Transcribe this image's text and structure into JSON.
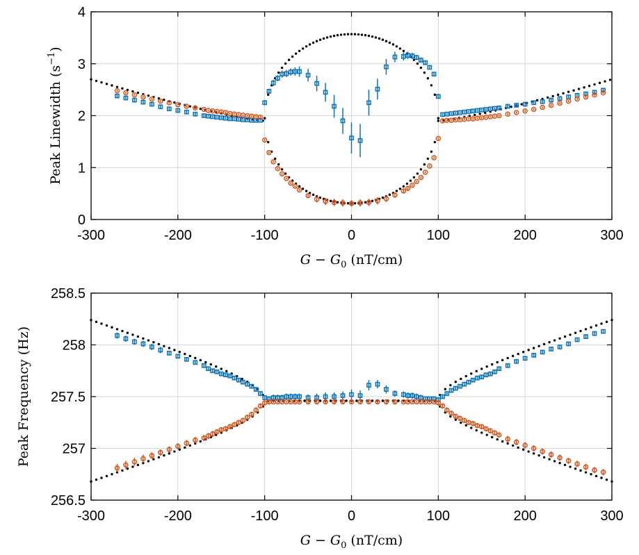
{
  "colors": {
    "blue": "#0a72bd",
    "orange": "#d95319",
    "theory": "#000000",
    "grid": "#d6d6d6"
  },
  "chart_data": [
    {
      "type": "scatter",
      "title": "",
      "xlabel": "G − G0 (nT/cm)",
      "xlabel_parts": {
        "main": "G − G",
        "sub": "0",
        "unit": " (nT/cm)"
      },
      "ylabel": "Peak Linewidth (s−1)",
      "ylabel_parts": {
        "main": "Peak Linewidth (s",
        "sup": "−1",
        "close": ")"
      },
      "xlim": [
        -300,
        300
      ],
      "ylim": [
        0,
        4
      ],
      "xticks": [
        "-300",
        "-200",
        "-100",
        "0",
        "100",
        "200",
        "300"
      ],
      "xtick_values": [
        -300,
        -200,
        -100,
        0,
        100,
        200,
        300
      ],
      "yticks": [
        "0",
        "1",
        "2",
        "3",
        "4"
      ],
      "ytick_values": [
        0,
        1,
        2,
        3,
        4
      ],
      "grid": true,
      "series": [
        {
          "marker": "square",
          "color": "#0a72bd",
          "x": [
            -270,
            -260,
            -250,
            -240,
            -230,
            -220,
            -210,
            -200,
            -190,
            -180,
            -170,
            -165,
            -160,
            -155,
            -150,
            -145,
            -140,
            -135,
            -130,
            -125,
            -120,
            -115,
            -110,
            -105,
            -100,
            -95,
            -90,
            -85,
            -80,
            -75,
            -70,
            -65,
            -60,
            -50,
            -40,
            -30,
            -20,
            -10,
            0,
            10,
            20,
            30,
            40,
            50,
            60,
            65,
            70,
            75,
            80,
            85,
            90,
            95,
            100,
            105,
            110,
            115,
            120,
            125,
            130,
            135,
            140,
            145,
            150,
            155,
            160,
            165,
            170,
            180,
            190,
            200,
            210,
            220,
            230,
            240,
            250,
            260,
            270,
            280,
            290
          ],
          "y": [
            2.38,
            2.34,
            2.3,
            2.26,
            2.22,
            2.17,
            2.13,
            2.1,
            2.07,
            2.03,
            2.0,
            1.99,
            1.98,
            1.97,
            1.96,
            1.95,
            1.94,
            1.94,
            1.93,
            1.92,
            1.92,
            1.91,
            1.91,
            1.91,
            2.25,
            2.47,
            2.63,
            2.72,
            2.8,
            2.81,
            2.84,
            2.85,
            2.85,
            2.78,
            2.62,
            2.45,
            2.18,
            1.9,
            1.57,
            1.52,
            2.25,
            2.51,
            2.94,
            3.13,
            3.14,
            3.16,
            3.15,
            3.12,
            3.07,
            3.02,
            2.93,
            2.8,
            2.37,
            2.02,
            2.03,
            2.04,
            2.05,
            2.06,
            2.07,
            2.08,
            2.09,
            2.1,
            2.11,
            2.12,
            2.13,
            2.14,
            2.15,
            2.18,
            2.2,
            2.22,
            2.25,
            2.27,
            2.3,
            2.33,
            2.36,
            2.39,
            2.42,
            2.45,
            2.49
          ],
          "err": [
            0.04,
            0.04,
            0.04,
            0.04,
            0.04,
            0.04,
            0.03,
            0.03,
            0.03,
            0.03,
            0.03,
            0.02,
            0.02,
            0.02,
            0.02,
            0.02,
            0.02,
            0.02,
            0.02,
            0.02,
            0.02,
            0.02,
            0.02,
            0.02,
            0.05,
            0.05,
            0.06,
            0.06,
            0.07,
            0.07,
            0.07,
            0.08,
            0.1,
            0.12,
            0.15,
            0.18,
            0.22,
            0.25,
            0.3,
            0.32,
            0.25,
            0.2,
            0.15,
            0.1,
            0.08,
            0.07,
            0.06,
            0.05,
            0.05,
            0.04,
            0.04,
            0.04,
            0.03,
            0.02,
            0.02,
            0.02,
            0.02,
            0.02,
            0.02,
            0.02,
            0.02,
            0.02,
            0.02,
            0.02,
            0.02,
            0.02,
            0.03,
            0.03,
            0.03,
            0.03,
            0.03,
            0.03,
            0.03,
            0.04,
            0.04,
            0.04,
            0.04,
            0.04,
            0.04
          ]
        },
        {
          "marker": "circle",
          "color": "#d95319",
          "x": [
            -270,
            -260,
            -250,
            -240,
            -230,
            -220,
            -210,
            -200,
            -190,
            -180,
            -170,
            -165,
            -160,
            -155,
            -150,
            -145,
            -140,
            -135,
            -130,
            -125,
            -120,
            -115,
            -110,
            -105,
            -100,
            -95,
            -90,
            -85,
            -80,
            -75,
            -70,
            -65,
            -60,
            -50,
            -40,
            -30,
            -20,
            -10,
            0,
            10,
            20,
            30,
            40,
            50,
            60,
            65,
            70,
            75,
            80,
            85,
            90,
            95,
            100,
            105,
            110,
            115,
            120,
            125,
            130,
            135,
            140,
            145,
            150,
            155,
            160,
            165,
            170,
            180,
            190,
            200,
            210,
            220,
            230,
            240,
            250,
            260,
            270,
            280,
            290
          ],
          "y": [
            2.48,
            2.44,
            2.4,
            2.36,
            2.32,
            2.28,
            2.25,
            2.21,
            2.18,
            2.15,
            2.12,
            2.1,
            2.09,
            2.08,
            2.07,
            2.06,
            2.04,
            2.03,
            2.02,
            2.01,
            2.0,
            1.99,
            1.98,
            1.97,
            1.53,
            1.29,
            1.11,
            0.98,
            0.88,
            0.79,
            0.7,
            0.64,
            0.57,
            0.46,
            0.39,
            0.35,
            0.33,
            0.32,
            0.31,
            0.32,
            0.33,
            0.36,
            0.4,
            0.47,
            0.55,
            0.6,
            0.66,
            0.73,
            0.81,
            0.91,
            1.03,
            1.19,
            1.56,
            1.9,
            1.91,
            1.91,
            1.92,
            1.92,
            1.93,
            1.94,
            1.94,
            1.95,
            1.96,
            1.97,
            1.98,
            1.99,
            2.0,
            2.03,
            2.06,
            2.09,
            2.12,
            2.16,
            2.2,
            2.24,
            2.28,
            2.32,
            2.36,
            2.4,
            2.44
          ],
          "err": [
            0.02,
            0.02,
            0.02,
            0.02,
            0.02,
            0.02,
            0.02,
            0.02,
            0.02,
            0.02,
            0.02,
            0.02,
            0.02,
            0.02,
            0.02,
            0.02,
            0.02,
            0.02,
            0.02,
            0.02,
            0.02,
            0.02,
            0.02,
            0.02,
            0.02,
            0.02,
            0.02,
            0.02,
            0.02,
            0.02,
            0.02,
            0.02,
            0.02,
            0.04,
            0.06,
            0.07,
            0.07,
            0.07,
            0.06,
            0.07,
            0.07,
            0.07,
            0.06,
            0.05,
            0.04,
            0.03,
            0.02,
            0.02,
            0.02,
            0.02,
            0.02,
            0.02,
            0.02,
            0.02,
            0.02,
            0.02,
            0.02,
            0.02,
            0.02,
            0.02,
            0.02,
            0.02,
            0.02,
            0.02,
            0.02,
            0.02,
            0.02,
            0.02,
            0.02,
            0.02,
            0.02,
            0.02,
            0.02,
            0.02,
            0.02,
            0.02,
            0.02,
            0.02,
            0.02
          ]
        }
      ]
    },
    {
      "type": "scatter",
      "title": "",
      "xlabel": "G − G0 (nT/cm)",
      "xlabel_parts": {
        "main": "G − G",
        "sub": "0",
        "unit": " (nT/cm)"
      },
      "ylabel": "Peak Frequency (Hz)",
      "xlim": [
        -300,
        300
      ],
      "ylim": [
        256.5,
        258.5
      ],
      "xticks": [
        "-300",
        "-200",
        "-100",
        "0",
        "100",
        "200",
        "300"
      ],
      "xtick_values": [
        -300,
        -200,
        -100,
        0,
        100,
        200,
        300
      ],
      "yticks": [
        "256.5",
        "257",
        "257.5",
        "258",
        "258.5"
      ],
      "ytick_values": [
        256.5,
        257,
        257.5,
        258,
        258.5
      ],
      "grid": true,
      "series": [
        {
          "marker": "square",
          "color": "#0a72bd",
          "x": [
            -270,
            -260,
            -250,
            -240,
            -230,
            -220,
            -210,
            -200,
            -190,
            -180,
            -170,
            -165,
            -160,
            -155,
            -150,
            -145,
            -140,
            -135,
            -130,
            -125,
            -120,
            -115,
            -110,
            -105,
            -100,
            -95,
            -90,
            -85,
            -80,
            -75,
            -70,
            -65,
            -60,
            -50,
            -40,
            -30,
            -20,
            -10,
            0,
            10,
            20,
            30,
            40,
            50,
            60,
            65,
            70,
            75,
            80,
            85,
            90,
            95,
            100,
            105,
            110,
            115,
            120,
            125,
            130,
            135,
            140,
            145,
            150,
            155,
            160,
            165,
            170,
            180,
            190,
            200,
            210,
            220,
            230,
            240,
            250,
            260,
            270,
            280,
            290
          ],
          "y": [
            258.09,
            258.06,
            258.03,
            258.01,
            257.98,
            257.95,
            257.92,
            257.89,
            257.86,
            257.83,
            257.8,
            257.77,
            257.75,
            257.74,
            257.72,
            257.71,
            257.7,
            257.68,
            257.66,
            257.64,
            257.62,
            257.6,
            257.57,
            257.53,
            257.49,
            257.48,
            257.49,
            257.49,
            257.49,
            257.5,
            257.5,
            257.5,
            257.5,
            257.49,
            257.49,
            257.5,
            257.5,
            257.51,
            257.52,
            257.51,
            257.61,
            257.62,
            257.57,
            257.53,
            257.52,
            257.51,
            257.51,
            257.5,
            257.49,
            257.48,
            257.48,
            257.48,
            257.47,
            257.5,
            257.53,
            257.56,
            257.58,
            257.6,
            257.62,
            257.64,
            257.66,
            257.68,
            257.69,
            257.71,
            257.72,
            257.74,
            257.77,
            257.8,
            257.84,
            257.87,
            257.9,
            257.93,
            257.96,
            257.98,
            258.01,
            258.05,
            258.08,
            258.11,
            258.13
          ],
          "err": [
            0.03,
            0.03,
            0.03,
            0.03,
            0.03,
            0.03,
            0.02,
            0.02,
            0.02,
            0.02,
            0.02,
            0.02,
            0.02,
            0.02,
            0.02,
            0.02,
            0.02,
            0.02,
            0.02,
            0.02,
            0.02,
            0.02,
            0.02,
            0.02,
            0.02,
            0.02,
            0.03,
            0.03,
            0.03,
            0.03,
            0.03,
            0.03,
            0.03,
            0.03,
            0.04,
            0.04,
            0.04,
            0.04,
            0.05,
            0.05,
            0.05,
            0.04,
            0.04,
            0.03,
            0.03,
            0.03,
            0.03,
            0.03,
            0.03,
            0.02,
            0.02,
            0.02,
            0.02,
            0.02,
            0.02,
            0.02,
            0.02,
            0.02,
            0.02,
            0.02,
            0.02,
            0.02,
            0.02,
            0.02,
            0.02,
            0.02,
            0.02,
            0.02,
            0.02,
            0.02,
            0.02,
            0.02,
            0.02,
            0.02,
            0.02,
            0.02,
            0.02,
            0.02,
            0.02
          ]
        },
        {
          "marker": "circle",
          "color": "#d95319",
          "x": [
            -270,
            -260,
            -250,
            -240,
            -230,
            -220,
            -210,
            -200,
            -190,
            -180,
            -170,
            -165,
            -160,
            -155,
            -150,
            -145,
            -140,
            -135,
            -130,
            -125,
            -120,
            -115,
            -110,
            -105,
            -100,
            -95,
            -90,
            -85,
            -80,
            -75,
            -70,
            -65,
            -60,
            -50,
            -40,
            -30,
            -20,
            -10,
            0,
            10,
            20,
            30,
            40,
            50,
            60,
            65,
            70,
            75,
            80,
            85,
            90,
            95,
            100,
            105,
            110,
            115,
            120,
            125,
            130,
            135,
            140,
            145,
            150,
            155,
            160,
            165,
            170,
            180,
            190,
            200,
            210,
            220,
            230,
            240,
            250,
            260,
            270,
            280,
            290
          ],
          "y": [
            256.81,
            256.84,
            256.87,
            256.9,
            256.93,
            256.96,
            256.99,
            257.02,
            257.05,
            257.08,
            257.1,
            257.12,
            257.14,
            257.16,
            257.18,
            257.19,
            257.21,
            257.23,
            257.25,
            257.27,
            257.3,
            257.33,
            257.37,
            257.41,
            257.44,
            257.45,
            257.45,
            257.45,
            257.45,
            257.45,
            257.45,
            257.45,
            257.45,
            257.45,
            257.45,
            257.45,
            257.45,
            257.45,
            257.45,
            257.45,
            257.45,
            257.45,
            257.45,
            257.45,
            257.45,
            257.45,
            257.45,
            257.45,
            257.45,
            257.45,
            257.45,
            257.45,
            257.44,
            257.41,
            257.37,
            257.34,
            257.31,
            257.29,
            257.27,
            257.25,
            257.24,
            257.22,
            257.21,
            257.19,
            257.17,
            257.15,
            257.13,
            257.09,
            257.06,
            257.03,
            257.0,
            256.97,
            256.94,
            256.91,
            256.88,
            256.85,
            256.82,
            256.79,
            256.77
          ],
          "err": [
            0.04,
            0.04,
            0.04,
            0.04,
            0.03,
            0.03,
            0.03,
            0.03,
            0.03,
            0.03,
            0.03,
            0.03,
            0.03,
            0.02,
            0.02,
            0.02,
            0.02,
            0.02,
            0.02,
            0.02,
            0.02,
            0.02,
            0.02,
            0.02,
            0.02,
            0.02,
            0.01,
            0.01,
            0.01,
            0.01,
            0.01,
            0.01,
            0.01,
            0.02,
            0.02,
            0.02,
            0.02,
            0.02,
            0.02,
            0.02,
            0.02,
            0.02,
            0.02,
            0.02,
            0.01,
            0.01,
            0.01,
            0.01,
            0.01,
            0.01,
            0.01,
            0.01,
            0.02,
            0.02,
            0.02,
            0.02,
            0.02,
            0.02,
            0.02,
            0.02,
            0.02,
            0.02,
            0.02,
            0.02,
            0.02,
            0.02,
            0.02,
            0.03,
            0.03,
            0.03,
            0.03,
            0.03,
            0.03,
            0.03,
            0.03,
            0.03,
            0.03,
            0.03,
            0.03
          ]
        }
      ]
    }
  ]
}
